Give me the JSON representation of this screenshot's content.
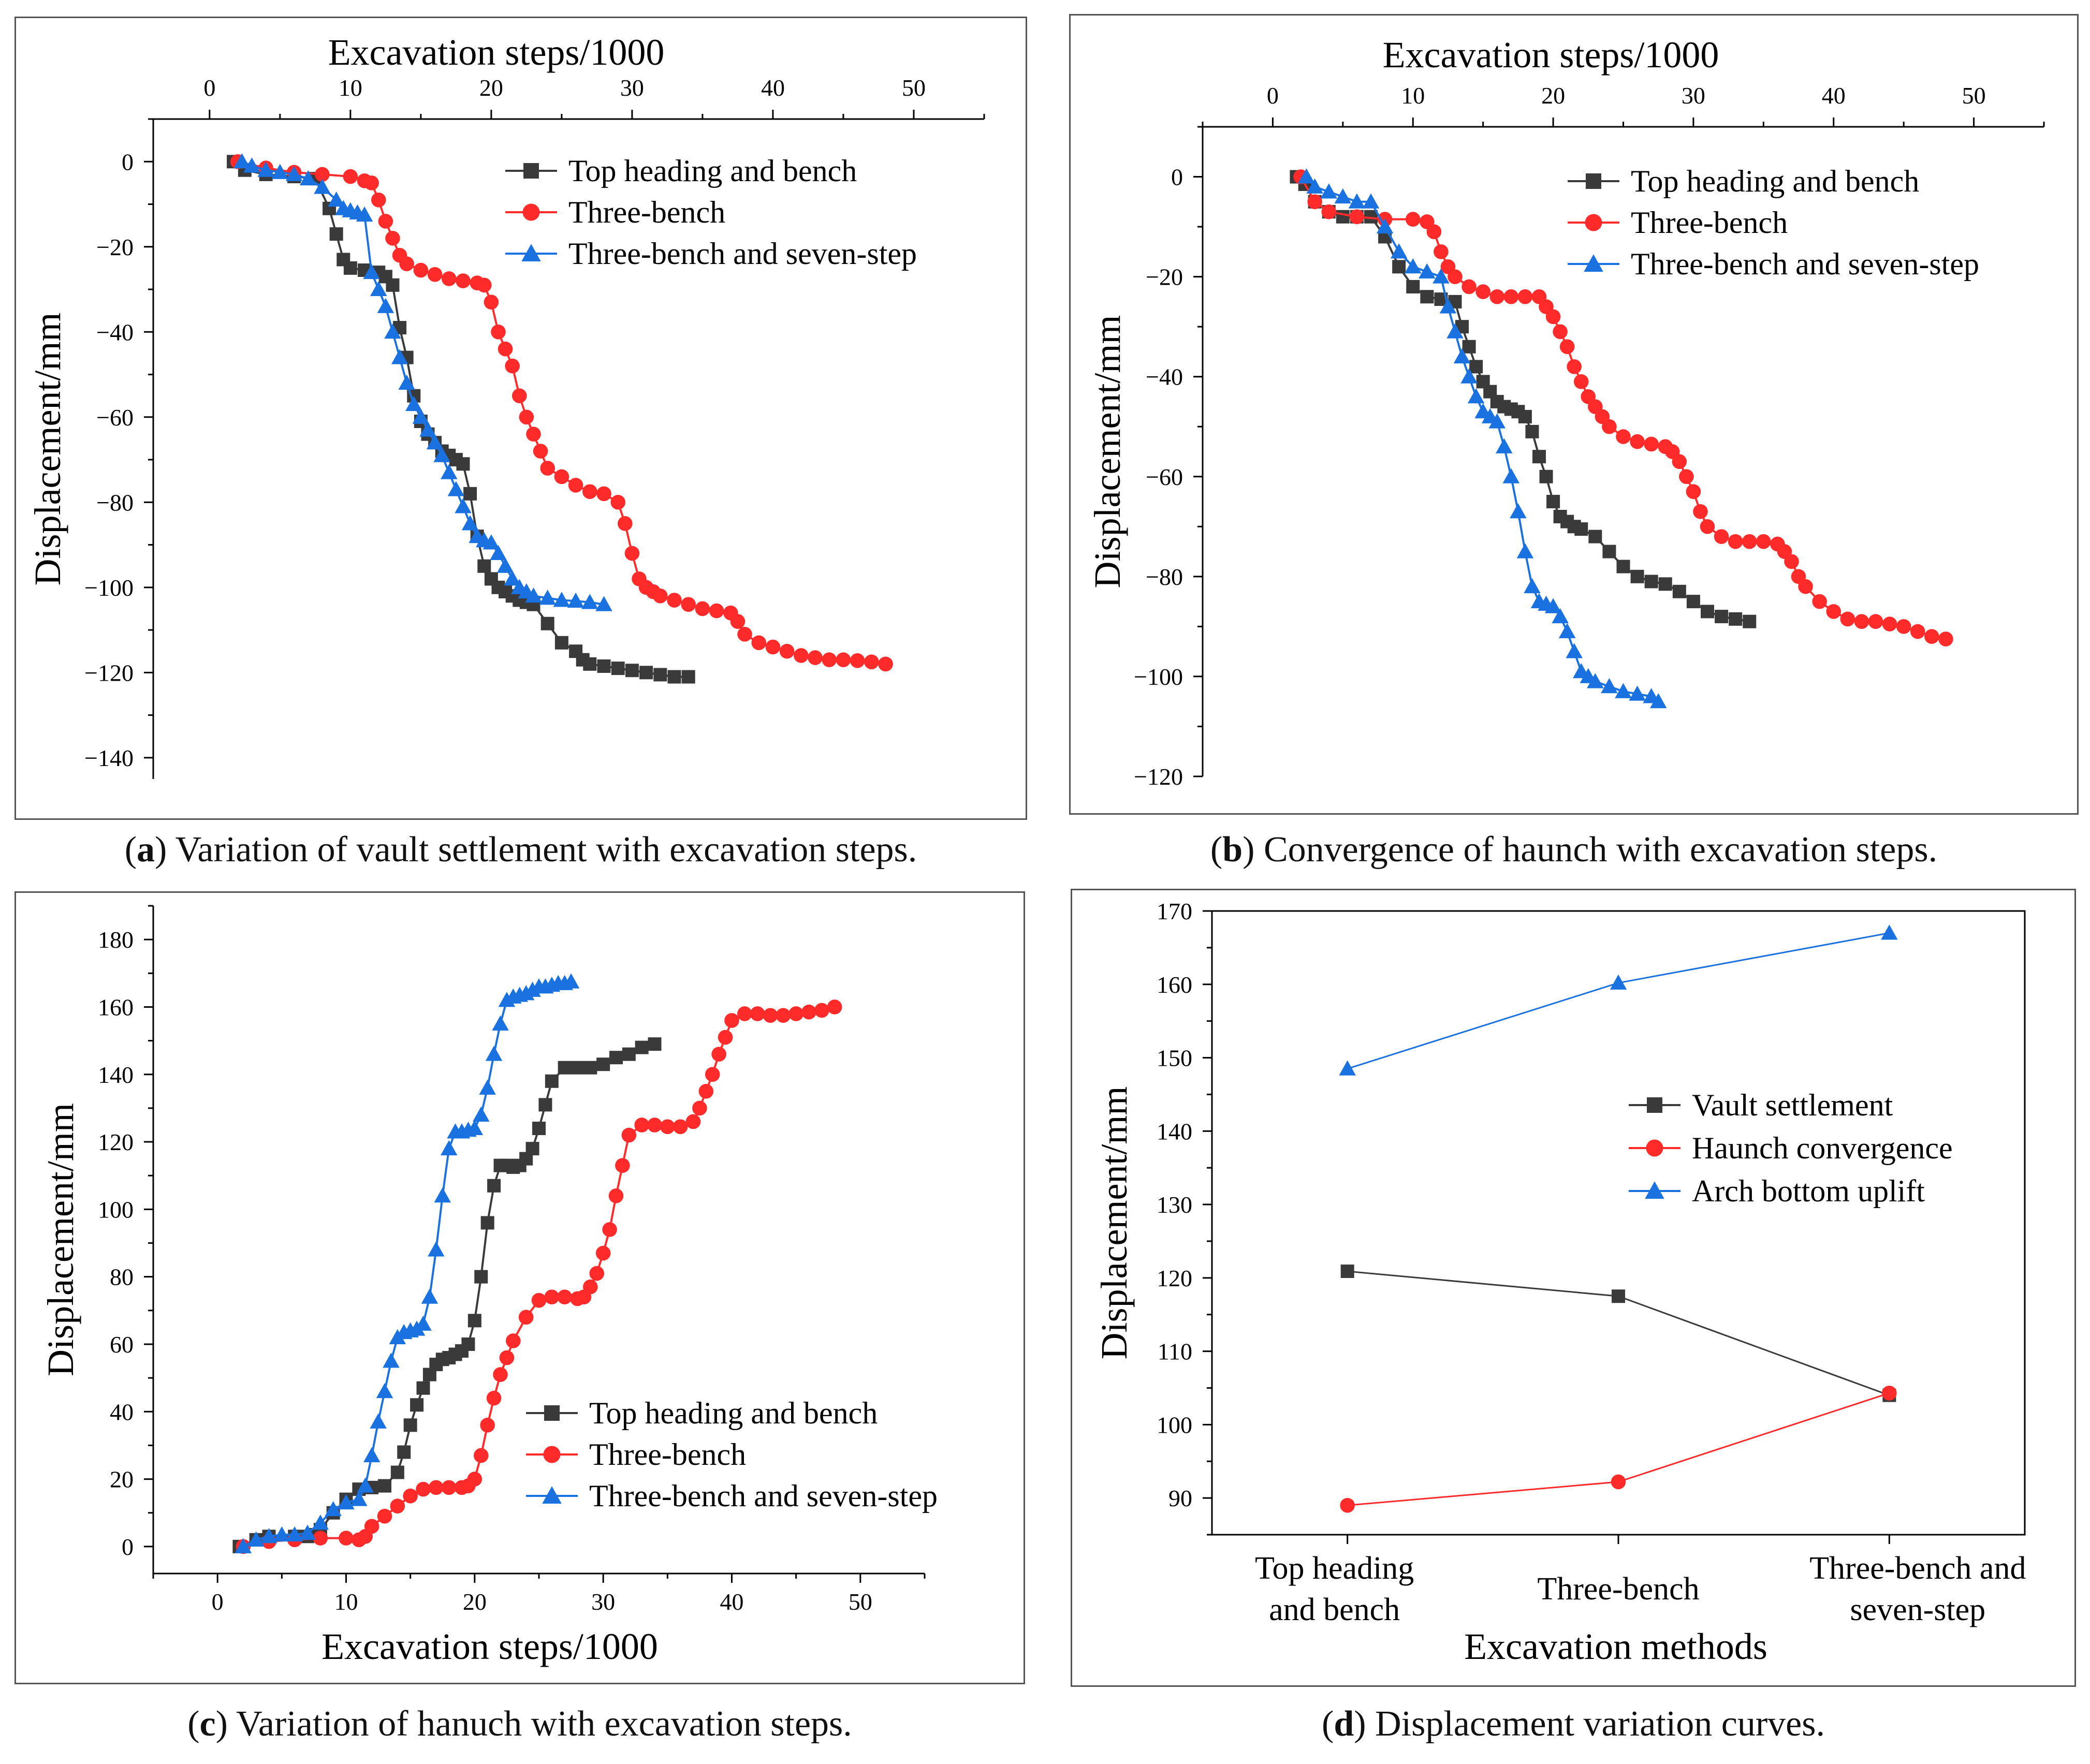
{
  "figure": {
    "captions": [
      {
        "letter": "a",
        "text": " Variation of vault settlement with excavation steps."
      },
      {
        "letter": "b",
        "text": " Convergence of haunch with excavation steps."
      },
      {
        "letter": "c",
        "text": " Variation of hanuch with excavation steps."
      },
      {
        "letter": "d",
        "text": " Displacement variation curves."
      }
    ]
  },
  "colors": {
    "series1": "#3a3a3a",
    "series2": "#ff2a2a",
    "series3": "#1a72e0",
    "axis": "#000000"
  },
  "chart_data": [
    {
      "id": "a",
      "type": "line",
      "title": "",
      "xlabel": "Excavation steps/1000",
      "ylabel": "Displacement/mm",
      "xaxis_position": "top",
      "xlim": [
        -4,
        55
      ],
      "ylim": [
        -145,
        10
      ],
      "xticks": [
        0,
        10,
        20,
        30,
        40,
        50
      ],
      "yticks": [
        0,
        -20,
        -40,
        -60,
        -80,
        -100,
        -120,
        -140
      ],
      "legend_position": "top-right",
      "series": [
        {
          "name": "Top heading and bench",
          "marker": "square",
          "x": [
            1.7,
            2.5,
            4,
            6,
            7.5,
            8.5,
            9,
            9.5,
            10,
            11,
            12,
            12.5,
            13,
            13.5,
            14,
            14.5,
            15,
            15.5,
            16,
            16.5,
            17,
            17.5,
            18,
            18.5,
            19,
            19.5,
            20,
            20.5,
            21,
            21.5,
            22,
            22.5,
            23,
            24,
            25,
            26,
            26.5,
            27,
            28,
            29,
            30,
            31,
            32,
            33,
            34
          ],
          "y": [
            0,
            -2,
            -3,
            -3.5,
            -4,
            -11,
            -17,
            -23,
            -25,
            -25.5,
            -26,
            -27,
            -29,
            -39,
            -46,
            -55,
            -61,
            -64,
            -66,
            -68,
            -69,
            -70,
            -71,
            -78,
            -88,
            -95,
            -98,
            -100,
            -101,
            -102,
            -103,
            -103.5,
            -104,
            -108.5,
            -113,
            -115,
            -117,
            -118,
            -118.5,
            -119,
            -119.5,
            -120,
            -120.5,
            -121,
            -121
          ]
        },
        {
          "name": "Three-bench",
          "marker": "circle",
          "x": [
            2,
            4,
            6,
            8,
            10,
            11,
            11.5,
            12,
            12.5,
            13,
            13.5,
            14,
            15,
            16,
            17,
            18,
            19,
            19.5,
            20,
            20.5,
            21,
            21.5,
            22,
            22.5,
            23,
            23.5,
            24,
            25,
            26,
            27,
            28,
            29,
            29.5,
            30,
            30.5,
            31,
            31.5,
            32,
            33,
            34,
            35,
            36,
            37,
            37.5,
            38,
            39,
            40,
            41,
            42,
            43,
            44,
            45,
            46,
            47,
            48
          ],
          "y": [
            0,
            -1.5,
            -2.5,
            -3,
            -3.5,
            -4.5,
            -5,
            -9,
            -14,
            -18,
            -22,
            -24,
            -25.5,
            -26.5,
            -27.5,
            -28,
            -28.5,
            -29,
            -33,
            -40,
            -44,
            -48,
            -55,
            -60,
            -64,
            -68,
            -72,
            -74,
            -76,
            -77.5,
            -78,
            -80,
            -85,
            -92,
            -98,
            -100,
            -101,
            -102,
            -103,
            -104,
            -105,
            -105.5,
            -106,
            -108,
            -111,
            -113,
            -114,
            -115,
            -116,
            -116.5,
            -117,
            -117,
            -117.2,
            -117.5,
            -118
          ]
        },
        {
          "name": "Three-bench and seven-step",
          "marker": "triangle",
          "x": [
            2.3,
            3,
            4,
            5,
            6,
            7,
            8,
            9,
            9.5,
            10,
            10.5,
            11,
            11.5,
            12,
            12.5,
            13,
            13.5,
            14,
            14.5,
            15,
            15.5,
            16,
            16.5,
            17,
            17.5,
            18,
            18.5,
            19,
            19.5,
            20,
            20.5,
            21,
            21.5,
            22,
            22.5,
            23,
            24,
            25,
            26,
            27,
            28
          ],
          "y": [
            0,
            -1,
            -2,
            -2.5,
            -3,
            -4,
            -6,
            -9,
            -11,
            -11.5,
            -12,
            -12.5,
            -26,
            -30,
            -34,
            -40,
            -46,
            -52,
            -57,
            -60,
            -63,
            -66,
            -69,
            -73,
            -77,
            -81,
            -85,
            -88,
            -89,
            -89.5,
            -92,
            -95,
            -98,
            -100,
            -101,
            -102,
            -102.5,
            -103,
            -103.2,
            -103.5,
            -104
          ]
        }
      ]
    },
    {
      "id": "b",
      "type": "line",
      "title": "",
      "xlabel": "Excavation steps/1000",
      "ylabel": "Displacement/mm",
      "xaxis_position": "top",
      "xlim": [
        -5,
        55
      ],
      "ylim": [
        -120,
        10
      ],
      "xticks": [
        0,
        10,
        20,
        30,
        40,
        50
      ],
      "yticks": [
        0,
        -20,
        -40,
        -60,
        -80,
        -100,
        -120
      ],
      "legend_position": "top-right",
      "series": [
        {
          "name": "Top heading and bench",
          "marker": "square",
          "x": [
            1.7,
            2.3,
            3,
            4,
            5,
            6,
            7,
            8,
            9,
            10,
            11,
            12,
            13,
            13.5,
            14,
            14.5,
            15,
            15.5,
            16,
            16.5,
            17,
            17.5,
            18,
            18.5,
            19,
            19.5,
            20,
            20.5,
            21,
            21.5,
            22,
            23,
            24,
            25,
            26,
            27,
            28,
            29,
            30,
            31,
            32,
            33,
            34
          ],
          "y": [
            0,
            -1.5,
            -5,
            -7,
            -8,
            -8,
            -8,
            -12,
            -18,
            -22,
            -24,
            -24.5,
            -25,
            -30,
            -34,
            -38,
            -41,
            -43,
            -45,
            -46,
            -46.5,
            -47,
            -48,
            -51,
            -56,
            -60,
            -65,
            -68,
            -69,
            -70,
            -70.5,
            -72,
            -75,
            -78,
            -80,
            -81,
            -81.5,
            -83,
            -85,
            -87,
            -88,
            -88.5,
            -89
          ]
        },
        {
          "name": "Three-bench",
          "marker": "circle",
          "x": [
            2,
            3,
            4,
            6,
            8,
            10,
            11,
            11.5,
            12,
            12.5,
            13,
            14,
            15,
            16,
            17,
            18,
            19,
            19.5,
            20,
            20.5,
            21,
            21.5,
            22,
            22.5,
            23,
            23.5,
            24,
            25,
            26,
            27,
            28,
            28.5,
            29,
            29.5,
            30,
            30.5,
            31,
            32,
            33,
            34,
            35,
            36,
            36.5,
            37,
            37.5,
            38,
            39,
            40,
            41,
            42,
            43,
            44,
            45,
            46,
            47,
            48
          ],
          "y": [
            0,
            -5,
            -7,
            -8,
            -8.5,
            -8.5,
            -9,
            -11,
            -15,
            -18,
            -20,
            -22,
            -23,
            -24,
            -24,
            -24,
            -24,
            -26,
            -28,
            -31,
            -34,
            -38,
            -41,
            -44,
            -46,
            -48,
            -50,
            -52,
            -53,
            -53.5,
            -54,
            -55,
            -57,
            -60,
            -63,
            -67,
            -70,
            -72,
            -73,
            -73,
            -73,
            -73.5,
            -75,
            -77,
            -80,
            -82,
            -85,
            -87,
            -88.5,
            -89,
            -89,
            -89.5,
            -90,
            -91,
            -92,
            -92.5
          ]
        },
        {
          "name": "Three-bench and seven-step",
          "marker": "triangle",
          "x": [
            2.4,
            3,
            4,
            5,
            6,
            7,
            8,
            9,
            10,
            11,
            12,
            12.5,
            13,
            13.5,
            14,
            14.5,
            15,
            15.5,
            16,
            16.5,
            17,
            17.5,
            18,
            18.5,
            19,
            19.5,
            20,
            20.5,
            21,
            21.5,
            22,
            22.5,
            23,
            24,
            25,
            26,
            27,
            27.5
          ],
          "y": [
            0,
            -2,
            -3,
            -4,
            -5,
            -5,
            -10,
            -15,
            -18,
            -19,
            -20,
            -26,
            -31,
            -36,
            -40,
            -44,
            -47,
            -48,
            -49,
            -54,
            -60,
            -67,
            -75,
            -82,
            -85,
            -85.5,
            -86,
            -88,
            -91,
            -95,
            -99,
            -100,
            -101,
            -102,
            -103,
            -103.5,
            -104,
            -105
          ]
        }
      ]
    },
    {
      "id": "c",
      "type": "line",
      "title": "",
      "xlabel": "Excavation steps/1000",
      "ylabel": "Displacement/mm",
      "xaxis_position": "bottom",
      "xlim": [
        -5,
        55
      ],
      "ylim": [
        -8,
        190
      ],
      "xticks": [
        0,
        10,
        20,
        30,
        40,
        50
      ],
      "yticks": [
        0,
        20,
        40,
        60,
        80,
        100,
        120,
        140,
        160,
        180
      ],
      "legend_position": "bottom-right",
      "series": [
        {
          "name": "Top heading and bench",
          "marker": "square",
          "x": [
            1.7,
            3,
            4,
            6,
            7,
            7.5,
            8,
            9,
            10,
            11,
            12,
            13,
            14,
            14.5,
            15,
            15.5,
            16,
            16.5,
            17,
            17.5,
            18,
            18.5,
            19,
            19.5,
            20,
            20.5,
            21,
            21.5,
            22,
            22.5,
            23,
            23.5,
            24,
            24.5,
            25,
            25.5,
            26,
            27,
            28,
            29,
            30,
            31,
            32,
            33,
            34
          ],
          "y": [
            0,
            2,
            3,
            3,
            3,
            3.5,
            5,
            10,
            14,
            17,
            17.5,
            18,
            22,
            28,
            36,
            42,
            47,
            51,
            54,
            55.5,
            56,
            57,
            58,
            60,
            67,
            80,
            96,
            107,
            113,
            113,
            112.5,
            113,
            115,
            118,
            124,
            131,
            138,
            142,
            142,
            142,
            143,
            145,
            146,
            148,
            149
          ]
        },
        {
          "name": "Three-bench",
          "marker": "circle",
          "x": [
            2,
            4,
            6,
            8,
            10,
            11,
            11.5,
            12,
            13,
            14,
            15,
            16,
            17,
            18,
            19,
            19.5,
            20,
            20.5,
            21,
            21.5,
            22,
            22.5,
            23,
            24,
            25,
            26,
            27,
            28,
            28.5,
            29,
            29.5,
            30,
            30.5,
            31,
            31.5,
            32,
            33,
            34,
            35,
            36,
            37,
            37.5,
            38,
            38.5,
            39,
            39.5,
            40,
            41,
            42,
            43,
            44,
            45,
            46,
            47,
            48
          ],
          "y": [
            0,
            1.5,
            2,
            2.5,
            2.5,
            2,
            3,
            6,
            9,
            12,
            15,
            17,
            17.5,
            17.5,
            17.5,
            18,
            20,
            27,
            36,
            44,
            51,
            56,
            61,
            68,
            73,
            74,
            74,
            73.5,
            74,
            77,
            81,
            87,
            94,
            104,
            113,
            122,
            125,
            125,
            124.5,
            124.5,
            126,
            130,
            135,
            140,
            146,
            151,
            156,
            158,
            158,
            157.5,
            157.5,
            158,
            158.5,
            159,
            160
          ]
        },
        {
          "name": "Three-bench and seven-step",
          "marker": "triangle",
          "x": [
            2,
            3,
            4,
            5,
            6,
            7,
            8,
            9,
            10,
            11,
            11.5,
            12,
            12.5,
            13,
            13.5,
            14,
            14.5,
            15,
            15.5,
            16,
            16.5,
            17,
            17.5,
            18,
            18.5,
            19,
            19.5,
            20,
            20.5,
            21,
            21.5,
            22,
            22.5,
            23,
            23.5,
            24,
            24.5,
            25,
            25.5,
            26,
            26.5,
            27,
            27.5
          ],
          "y": [
            0,
            2,
            3,
            3.5,
            3.5,
            4,
            7,
            11,
            13,
            14,
            18,
            27,
            37,
            46,
            55,
            62,
            63.5,
            64,
            64.5,
            66,
            74,
            88,
            104,
            118,
            123,
            123,
            123.5,
            124,
            128,
            136,
            146,
            155,
            162,
            163,
            163.5,
            164,
            165,
            166,
            166,
            166.5,
            167,
            167,
            167.5
          ]
        }
      ]
    },
    {
      "id": "d",
      "type": "line",
      "title": "",
      "xlabel": "Excavation methods",
      "ylabel": "Displacement/mm",
      "xaxis_position": "bottom",
      "categories": [
        "Top heading and bench",
        "Three-bench",
        "Three-bench and seven-step"
      ],
      "category_lines": [
        [
          "Top heading",
          "and bench"
        ],
        [
          "Three-bench"
        ],
        [
          "Three-bench and",
          "seven-step"
        ]
      ],
      "ylim": [
        85,
        170
      ],
      "yticks": [
        90,
        100,
        110,
        120,
        130,
        140,
        150,
        160,
        170
      ],
      "legend_position": "center-right",
      "series": [
        {
          "name": "Vault settlement",
          "marker": "square",
          "values": [
            120.9,
            117.5,
            104.0
          ]
        },
        {
          "name": "Haunch convergence",
          "marker": "circle",
          "values": [
            89.0,
            92.2,
            104.3
          ]
        },
        {
          "name": "Arch bottom uplift",
          "marker": "triangle",
          "values": [
            148.5,
            160.2,
            167.0
          ]
        }
      ]
    }
  ]
}
